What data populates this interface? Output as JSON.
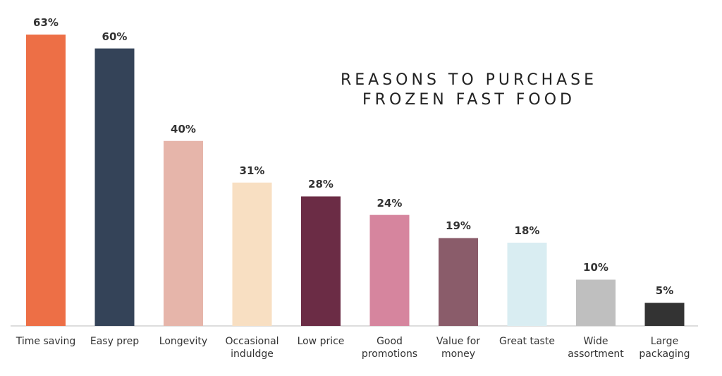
{
  "chart_data": {
    "type": "bar",
    "title": "REASONS TO PURCHASE FROZEN FAST FOOD",
    "categories": [
      "Time saving",
      "Easy prep",
      "Longevity",
      "Occasional induldge",
      "Low price",
      "Good promotions",
      "Value for money",
      "Great taste",
      "Wide assortment",
      "Large packaging"
    ],
    "values": [
      63,
      60,
      40,
      31,
      28,
      24,
      19,
      18,
      10,
      5
    ],
    "value_labels": [
      "63%",
      "60%",
      "40%",
      "31%",
      "28%",
      "24%",
      "19%",
      "18%",
      "10%",
      "5%"
    ],
    "colors": [
      "#ed6f46",
      "#344358",
      "#e6b5aa",
      "#f8dfc2",
      "#6b2c45",
      "#d6859e",
      "#8a5c6a",
      "#d9edf2",
      "#bfbfbf",
      "#333333"
    ]
  }
}
